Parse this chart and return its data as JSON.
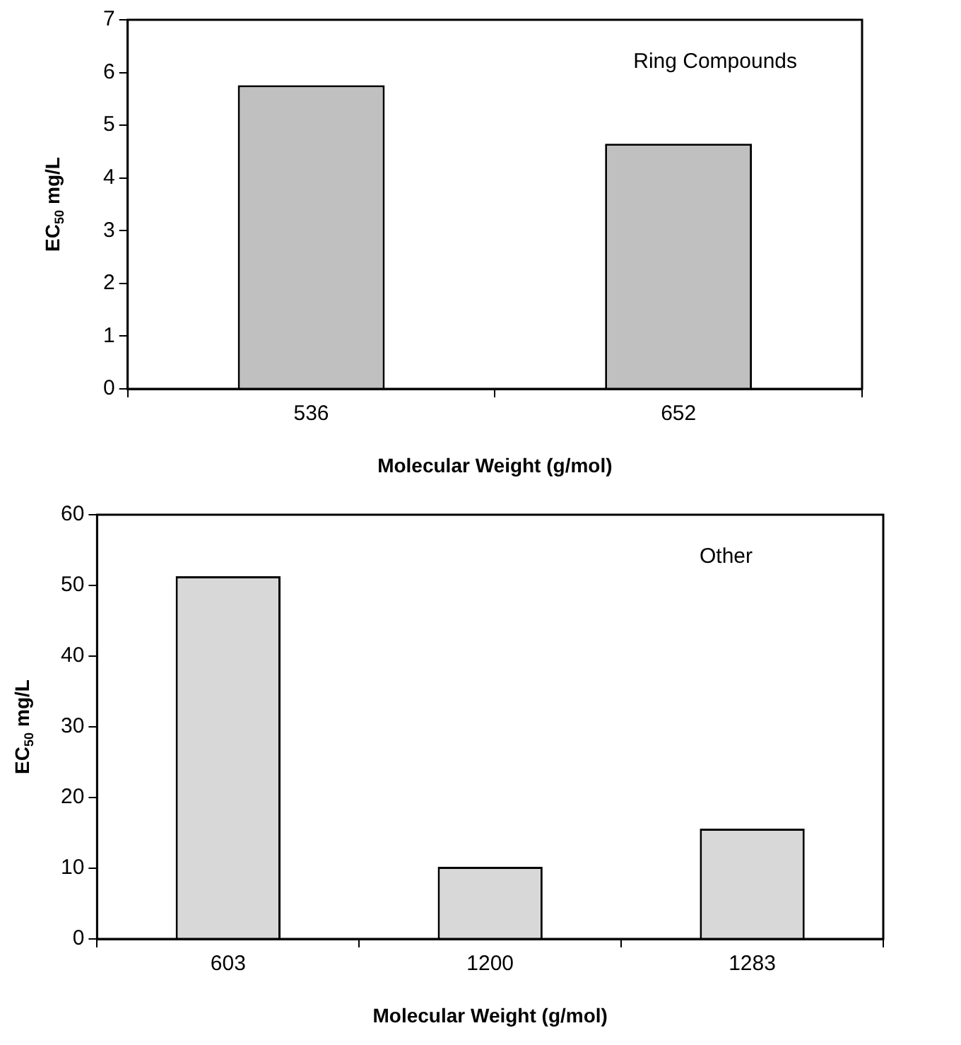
{
  "chart_data": [
    {
      "type": "bar",
      "xlabel": "Molecular Weight (g/mol)",
      "ylabel": "EC$_{50}$ mg/L",
      "categories": [
        "536",
        "652"
      ],
      "values": [
        5.76,
        4.65
      ],
      "color": "#c0c0c0",
      "ylim": [
        0,
        7
      ],
      "yticks": [
        0,
        1,
        2,
        3,
        4,
        5,
        6,
        7
      ],
      "grid": false,
      "annotations": [
        "Ring Compounds"
      ]
    },
    {
      "type": "bar",
      "xlabel": "Molecular Weight (g/mol)",
      "ylabel": "EC$_{50}$ mg/L",
      "categories": [
        "603",
        "1200",
        "1283"
      ],
      "values": [
        51.3,
        10.2,
        15.6
      ],
      "color": "#d8d8d8",
      "ylim": [
        0,
        60
      ],
      "yticks": [
        0,
        10,
        20,
        30,
        40,
        50,
        60
      ],
      "grid": false,
      "annotations": [
        "Other"
      ]
    }
  ]
}
